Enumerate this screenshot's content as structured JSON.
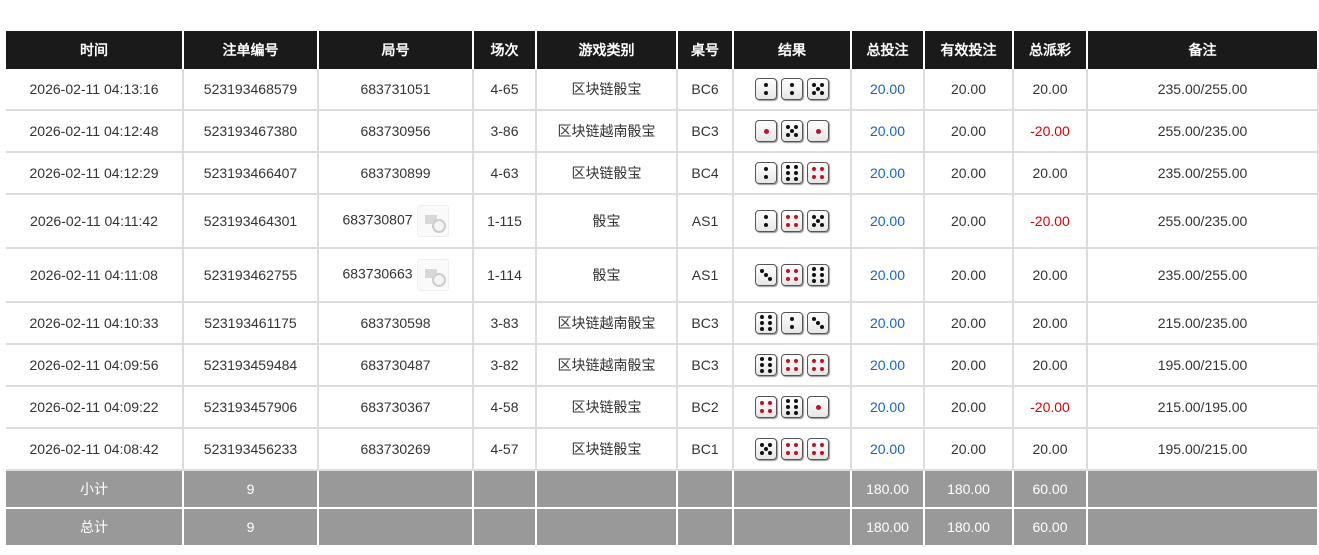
{
  "headers": [
    "时间",
    "注单编号",
    "局号",
    "场次",
    "游戏类别",
    "桌号",
    "结果",
    "总投注",
    "有效投注",
    "总派彩",
    "备注"
  ],
  "rows": [
    {
      "time": "2026-02-11 04:13:16",
      "bet_id": "523193468579",
      "round": "683731051",
      "session": "4-65",
      "game": "区块链骰宝",
      "table": "BC6",
      "dice": [
        2,
        2,
        5
      ],
      "bet": "20.00",
      "valid": "20.00",
      "payout": "20.00",
      "note": "235.00/255.00",
      "video": false
    },
    {
      "time": "2026-02-11 04:12:48",
      "bet_id": "523193467380",
      "round": "683730956",
      "session": "3-86",
      "game": "区块链越南骰宝",
      "table": "BC3",
      "dice": [
        1,
        5,
        1
      ],
      "bet": "20.00",
      "valid": "20.00",
      "payout": "-20.00",
      "note": "255.00/235.00",
      "video": false
    },
    {
      "time": "2026-02-11 04:12:29",
      "bet_id": "523193466407",
      "round": "683730899",
      "session": "4-63",
      "game": "区块链骰宝",
      "table": "BC4",
      "dice": [
        2,
        6,
        4
      ],
      "bet": "20.00",
      "valid": "20.00",
      "payout": "20.00",
      "note": "235.00/255.00",
      "video": false
    },
    {
      "time": "2026-02-11 04:11:42",
      "bet_id": "523193464301",
      "round": "683730807",
      "session": "1-115",
      "game": "骰宝",
      "table": "AS1",
      "dice": [
        2,
        4,
        5
      ],
      "bet": "20.00",
      "valid": "20.00",
      "payout": "-20.00",
      "note": "255.00/235.00",
      "video": true
    },
    {
      "time": "2026-02-11 04:11:08",
      "bet_id": "523193462755",
      "round": "683730663",
      "session": "1-114",
      "game": "骰宝",
      "table": "AS1",
      "dice": [
        3,
        4,
        6
      ],
      "bet": "20.00",
      "valid": "20.00",
      "payout": "20.00",
      "note": "235.00/255.00",
      "video": true
    },
    {
      "time": "2026-02-11 04:10:33",
      "bet_id": "523193461175",
      "round": "683730598",
      "session": "3-83",
      "game": "区块链越南骰宝",
      "table": "BC3",
      "dice": [
        6,
        2,
        3
      ],
      "bet": "20.00",
      "valid": "20.00",
      "payout": "20.00",
      "note": "215.00/235.00",
      "video": false
    },
    {
      "time": "2026-02-11 04:09:56",
      "bet_id": "523193459484",
      "round": "683730487",
      "session": "3-82",
      "game": "区块链越南骰宝",
      "table": "BC3",
      "dice": [
        6,
        4,
        4
      ],
      "bet": "20.00",
      "valid": "20.00",
      "payout": "20.00",
      "note": "195.00/215.00",
      "video": false
    },
    {
      "time": "2026-02-11 04:09:22",
      "bet_id": "523193457906",
      "round": "683730367",
      "session": "4-58",
      "game": "区块链骰宝",
      "table": "BC2",
      "dice": [
        4,
        6,
        1
      ],
      "bet": "20.00",
      "valid": "20.00",
      "payout": "-20.00",
      "note": "215.00/195.00",
      "video": false
    },
    {
      "time": "2026-02-11 04:08:42",
      "bet_id": "523193456233",
      "round": "683730269",
      "session": "4-57",
      "game": "区块链骰宝",
      "table": "BC1",
      "dice": [
        5,
        4,
        4
      ],
      "bet": "20.00",
      "valid": "20.00",
      "payout": "20.00",
      "note": "195.00/215.00",
      "video": false
    }
  ],
  "subtotal": {
    "label": "小计",
    "count": "9",
    "bet": "180.00",
    "valid": "180.00",
    "payout": "60.00"
  },
  "total": {
    "label": "总计",
    "count": "9",
    "bet": "180.00",
    "valid": "180.00",
    "payout": "60.00"
  },
  "colors": {
    "header_bg": "#1a1a1a",
    "bet": "#1560d6",
    "negative": "#e00000",
    "summary_bg": "#999999"
  }
}
